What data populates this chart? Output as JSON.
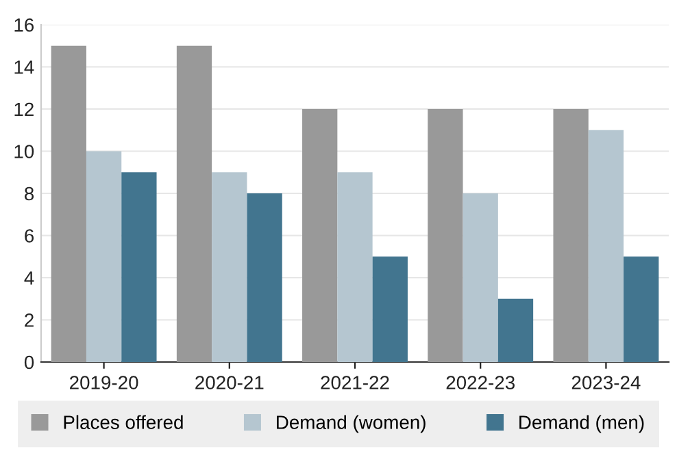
{
  "chart_data": {
    "type": "bar",
    "categories": [
      "2019-20",
      "2020-21",
      "2021-22",
      "2022-23",
      "2023-24"
    ],
    "series": [
      {
        "name": "Places offered",
        "color": "#999999",
        "values": [
          15,
          15,
          12,
          12,
          12
        ]
      },
      {
        "name": "Demand (women)",
        "color": "#b5c6d0",
        "values": [
          10,
          9,
          9,
          8,
          11
        ]
      },
      {
        "name": "Demand (men)",
        "color": "#42758f",
        "values": [
          9,
          8,
          5,
          3,
          5
        ]
      }
    ],
    "ylim": [
      0,
      16
    ],
    "yticks": [
      0,
      2,
      4,
      6,
      8,
      10,
      12,
      14,
      16
    ],
    "grid": "y",
    "legend": "bottom"
  }
}
